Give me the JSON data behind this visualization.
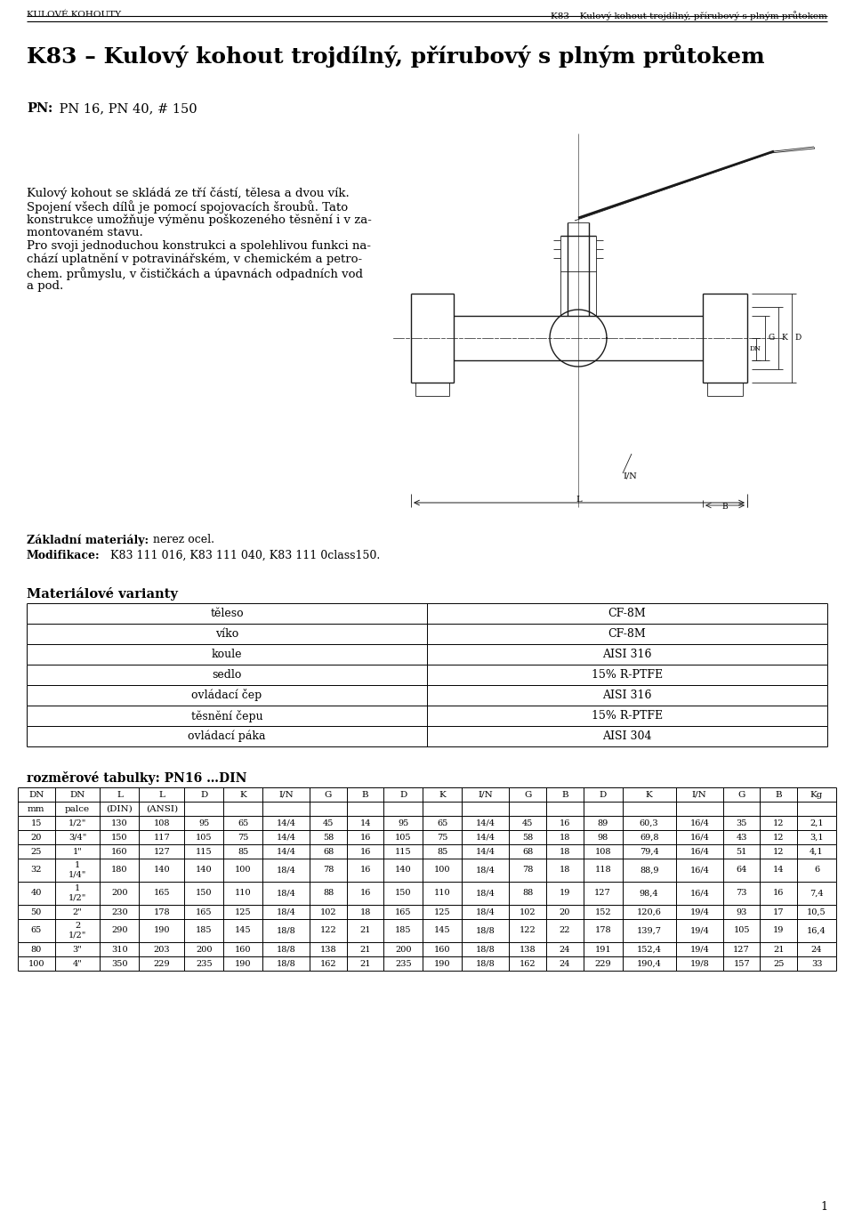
{
  "header_left": "Kulové kohouty",
  "header_right": "K83 – Kulový kohout trojdílný, přírubový s plným průtokem",
  "title": "K83 – Kulový kohout trojdílný, přírubový s plným průtokem",
  "pn_label": "PN:",
  "pn_value": " PN 16, PN 40, # 150",
  "body_lines": [
    "Kulový kohout se skládá ze tří částí, tělesa a dvou vík.",
    "Spojení všech dílů je pomocí spojovacích šroubů. Tato",
    "konstrukce umožňuje výměnu poškozeného těsnění i v za-",
    "montovaném stavu.",
    "Pro svoji jednoduchou konstrukci a spolehlivou funkci na-",
    "chází uplatnění v potravinářském, v chemickém a petro-",
    "chem. průmyslu, v čističkách a úpavnách odpadních vod",
    "a pod."
  ],
  "basic_materials_label": "Základní materiály:",
  "basic_materials_value": " nerez ocel.",
  "modifikace_label": "Modifikace:",
  "modifikace_value": " K83 111 016, K83 111 040, K83 111 0class150.",
  "material_variants_title": "Materiálové varianty",
  "material_rows": [
    [
      "těleso",
      "CF-8M"
    ],
    [
      "víko",
      "CF-8M"
    ],
    [
      "koule",
      "AISI 316"
    ],
    [
      "sedlo",
      "15% R-PTFE"
    ],
    [
      "ovládací čep",
      "AISI 316"
    ],
    [
      "těsnění čepu",
      "15% R-PTFE"
    ],
    [
      "ovládací páka",
      "AISI 304"
    ]
  ],
  "rozmere_title": "rozměrové tabulky: PN16 …DIN",
  "table_header_row1": [
    "DN",
    "DN",
    "L",
    "L",
    "D",
    "K",
    "I/N",
    "G",
    "B",
    "D",
    "K",
    "I/N",
    "G",
    "B",
    "D",
    "K",
    "I/N",
    "G",
    "B",
    "Kg"
  ],
  "table_header_row2": [
    "mm",
    "palce",
    "(DIN)",
    "(ANSI)",
    "",
    "",
    "",
    "",
    "",
    "",
    "",
    "",
    "",
    "",
    "",
    "",
    "",
    "",
    "",
    ""
  ],
  "table_data": [
    [
      "15",
      "1/2\"",
      "130",
      "108",
      "95",
      "65",
      "14/4",
      "45",
      "14",
      "95",
      "65",
      "14/4",
      "45",
      "16",
      "89",
      "60,3",
      "16/4",
      "35",
      "12",
      "2,1"
    ],
    [
      "20",
      "3/4\"",
      "150",
      "117",
      "105",
      "75",
      "14/4",
      "58",
      "16",
      "105",
      "75",
      "14/4",
      "58",
      "18",
      "98",
      "69,8",
      "16/4",
      "43",
      "12",
      "3,1"
    ],
    [
      "25",
      "1\"",
      "160",
      "127",
      "115",
      "85",
      "14/4",
      "68",
      "16",
      "115",
      "85",
      "14/4",
      "68",
      "18",
      "108",
      "79,4",
      "16/4",
      "51",
      "12",
      "4,1"
    ],
    [
      "32",
      "1\n1/4\"",
      "180",
      "140",
      "140",
      "100",
      "18/4",
      "78",
      "16",
      "140",
      "100",
      "18/4",
      "78",
      "18",
      "118",
      "88,9",
      "16/4",
      "64",
      "14",
      "6"
    ],
    [
      "40",
      "1\n1/2\"",
      "200",
      "165",
      "150",
      "110",
      "18/4",
      "88",
      "16",
      "150",
      "110",
      "18/4",
      "88",
      "19",
      "127",
      "98,4",
      "16/4",
      "73",
      "16",
      "7,4"
    ],
    [
      "50",
      "2\"",
      "230",
      "178",
      "165",
      "125",
      "18/4",
      "102",
      "18",
      "165",
      "125",
      "18/4",
      "102",
      "20",
      "152",
      "120,6",
      "19/4",
      "93",
      "17",
      "10,5"
    ],
    [
      "65",
      "2\n1/2\"",
      "290",
      "190",
      "185",
      "145",
      "18/8",
      "122",
      "21",
      "185",
      "145",
      "18/8",
      "122",
      "22",
      "178",
      "139,7",
      "19/4",
      "105",
      "19",
      "16,4"
    ],
    [
      "80",
      "3\"",
      "310",
      "203",
      "200",
      "160",
      "18/8",
      "138",
      "21",
      "200",
      "160",
      "18/8",
      "138",
      "24",
      "191",
      "152,4",
      "19/4",
      "127",
      "21",
      "24"
    ],
    [
      "100",
      "4\"",
      "350",
      "229",
      "235",
      "190",
      "18/8",
      "162",
      "21",
      "235",
      "190",
      "18/8",
      "162",
      "24",
      "229",
      "190,4",
      "19/8",
      "157",
      "25",
      "33"
    ]
  ],
  "page_number": "1",
  "bg_color": "#ffffff",
  "text_color": "#000000"
}
